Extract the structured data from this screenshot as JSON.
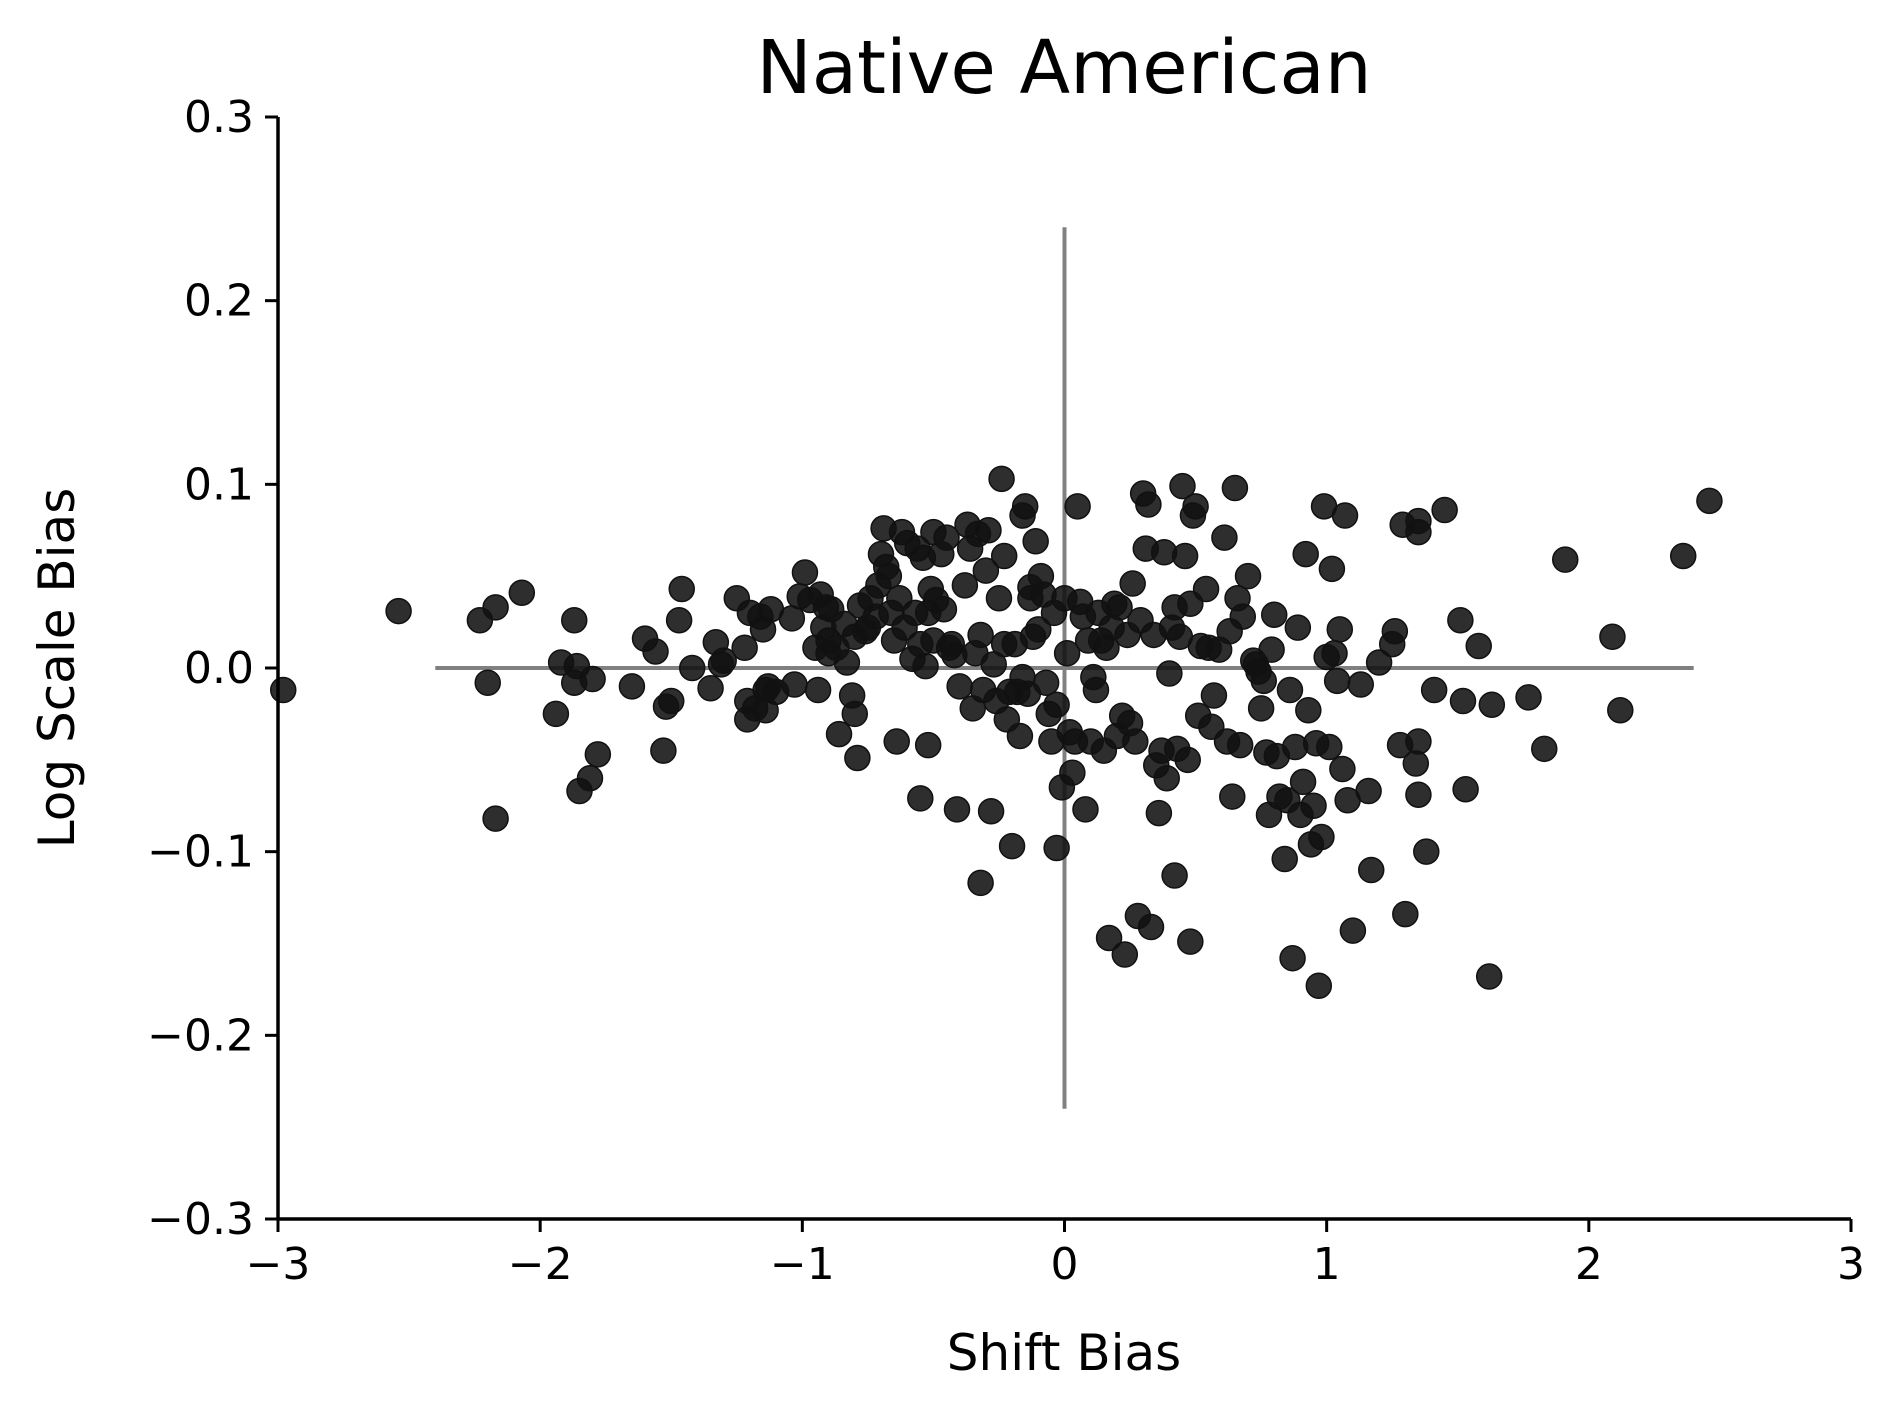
{
  "chart_data": {
    "type": "scatter",
    "title": "Native American",
    "xlabel": "Shift Bias",
    "ylabel": "Log Scale Bias",
    "xlim": [
      -3,
      3
    ],
    "ylim": [
      -0.3,
      0.3
    ],
    "xticks": [
      -3,
      -2,
      -1,
      0,
      1,
      2,
      3
    ],
    "xtick_labels": [
      "−3",
      "−2",
      "−1",
      "0",
      "1",
      "2",
      "3"
    ],
    "yticks": [
      0.3,
      0.2,
      0.1,
      0.0,
      -0.1,
      -0.2,
      -0.3
    ],
    "ytick_labels": [
      "0.3",
      "0.2",
      "0.1",
      "0.0",
      "−0.1",
      "−0.2",
      "−0.3"
    ],
    "reference_lines": {
      "horizontal": {
        "y": 0,
        "x_from": -2.4,
        "x_to": 2.4
      },
      "vertical": {
        "x": 0,
        "y_from": -0.24,
        "y_to": 0.24
      }
    },
    "grid": false,
    "colors": {
      "points": "#111111",
      "reference": "#808080",
      "axes": "#000000"
    },
    "series": [
      {
        "points": [
          [
            -2.98,
            -0.012
          ],
          [
            -2.54,
            0.031
          ],
          [
            -2.23,
            0.026
          ],
          [
            -2.2,
            -0.008
          ],
          [
            -2.17,
            0.033
          ],
          [
            -2.07,
            0.041
          ],
          [
            -2.17,
            -0.082
          ],
          [
            -1.94,
            -0.025
          ],
          [
            -1.92,
            0.003
          ],
          [
            -1.87,
            0.026
          ],
          [
            -1.86,
            0.001
          ],
          [
            -1.87,
            -0.008
          ],
          [
            -1.85,
            -0.067
          ],
          [
            -1.81,
            -0.06
          ],
          [
            -1.8,
            -0.006
          ],
          [
            -1.78,
            -0.047
          ],
          [
            -1.65,
            -0.01
          ],
          [
            -1.6,
            0.016
          ],
          [
            -1.56,
            0.009
          ],
          [
            -1.53,
            -0.045
          ],
          [
            -1.52,
            -0.021
          ],
          [
            -1.5,
            -0.018
          ],
          [
            -1.47,
            0.026
          ],
          [
            -1.46,
            0.043
          ],
          [
            -1.42,
            0.0
          ],
          [
            -1.35,
            -0.011
          ],
          [
            -1.33,
            0.014
          ],
          [
            -1.31,
            0.002
          ],
          [
            -1.3,
            0.004
          ],
          [
            -1.25,
            0.038
          ],
          [
            -1.22,
            0.011
          ],
          [
            -1.21,
            -0.018
          ],
          [
            -1.21,
            -0.028
          ],
          [
            -1.2,
            0.03
          ],
          [
            -1.18,
            -0.022
          ],
          [
            -1.16,
            0.028
          ],
          [
            -1.15,
            0.021
          ],
          [
            -1.14,
            -0.012
          ],
          [
            -1.14,
            -0.023
          ],
          [
            -1.13,
            -0.01
          ],
          [
            -1.12,
            0.032
          ],
          [
            -1.1,
            -0.013
          ],
          [
            -1.04,
            0.027
          ],
          [
            -1.03,
            -0.009
          ],
          [
            -1.01,
            0.039
          ],
          [
            -0.99,
            0.052
          ],
          [
            -0.97,
            0.037
          ],
          [
            -0.95,
            0.011
          ],
          [
            -0.94,
            -0.012
          ],
          [
            -0.93,
            0.04
          ],
          [
            -0.92,
            0.022
          ],
          [
            -0.91,
            0.033
          ],
          [
            -0.9,
            0.008
          ],
          [
            -0.9,
            0.015
          ],
          [
            -0.89,
            0.032
          ],
          [
            -0.87,
            0.011
          ],
          [
            -0.86,
            -0.036
          ],
          [
            -0.84,
            0.024
          ],
          [
            -0.83,
            0.003
          ],
          [
            -0.81,
            -0.015
          ],
          [
            -0.8,
            -0.025
          ],
          [
            -0.8,
            0.017
          ],
          [
            -0.79,
            -0.049
          ],
          [
            -0.78,
            0.034
          ],
          [
            -0.76,
            0.02
          ],
          [
            -0.75,
            0.022
          ],
          [
            -0.74,
            0.038
          ],
          [
            -0.72,
            0.028
          ],
          [
            -0.71,
            0.045
          ],
          [
            -0.7,
            0.062
          ],
          [
            -0.69,
            0.076
          ],
          [
            -0.68,
            0.055
          ],
          [
            -0.67,
            0.05
          ],
          [
            -0.66,
            0.03
          ],
          [
            -0.65,
            0.015
          ],
          [
            -0.64,
            -0.04
          ],
          [
            -0.63,
            0.038
          ],
          [
            -0.62,
            0.074
          ],
          [
            -0.61,
            0.022
          ],
          [
            -0.6,
            0.068
          ],
          [
            -0.58,
            0.005
          ],
          [
            -0.57,
            0.03
          ],
          [
            -0.56,
            0.065
          ],
          [
            -0.55,
            0.013
          ],
          [
            -0.55,
            -0.071
          ],
          [
            -0.54,
            0.06
          ],
          [
            -0.53,
            0.001
          ],
          [
            -0.52,
            0.03
          ],
          [
            -0.52,
            -0.042
          ],
          [
            -0.51,
            0.043
          ],
          [
            -0.5,
            0.074
          ],
          [
            -0.5,
            0.015
          ],
          [
            -0.49,
            0.037
          ],
          [
            -0.47,
            0.062
          ],
          [
            -0.46,
            0.032
          ],
          [
            -0.45,
            0.071
          ],
          [
            -0.44,
            0.011
          ],
          [
            -0.43,
            0.013
          ],
          [
            -0.42,
            0.007
          ],
          [
            -0.41,
            -0.077
          ],
          [
            -0.4,
            -0.01
          ],
          [
            -0.38,
            0.045
          ],
          [
            -0.37,
            0.078
          ],
          [
            -0.36,
            0.065
          ],
          [
            -0.35,
            -0.022
          ],
          [
            -0.34,
            0.008
          ],
          [
            -0.33,
            0.073
          ],
          [
            -0.32,
            0.018
          ],
          [
            -0.32,
            -0.117
          ],
          [
            -0.31,
            -0.012
          ],
          [
            -0.3,
            0.053
          ],
          [
            -0.29,
            0.075
          ],
          [
            -0.28,
            -0.078
          ],
          [
            -0.27,
            0.002
          ],
          [
            -0.26,
            -0.018
          ],
          [
            -0.25,
            0.038
          ],
          [
            -0.24,
            0.103
          ],
          [
            -0.23,
            0.061
          ],
          [
            -0.23,
            0.013
          ],
          [
            -0.22,
            -0.028
          ],
          [
            -0.21,
            -0.013
          ],
          [
            -0.2,
            -0.097
          ],
          [
            -0.19,
            0.013
          ],
          [
            -0.18,
            -0.013
          ],
          [
            -0.17,
            -0.037
          ],
          [
            -0.16,
            -0.005
          ],
          [
            -0.16,
            0.083
          ],
          [
            -0.15,
            0.088
          ],
          [
            -0.14,
            -0.014
          ],
          [
            -0.13,
            0.044
          ],
          [
            -0.13,
            0.038
          ],
          [
            -0.12,
            0.017
          ],
          [
            -0.11,
            0.069
          ],
          [
            -0.1,
            0.021
          ],
          [
            -0.09,
            0.05
          ],
          [
            -0.08,
            0.04
          ],
          [
            -0.07,
            -0.008
          ],
          [
            -0.06,
            -0.025
          ],
          [
            -0.05,
            -0.04
          ],
          [
            -0.04,
            0.03
          ],
          [
            -0.03,
            -0.02
          ],
          [
            -0.03,
            -0.098
          ],
          [
            -0.01,
            -0.065
          ],
          [
            0.0,
            0.038
          ],
          [
            0.01,
            0.008
          ],
          [
            0.02,
            -0.035
          ],
          [
            0.03,
            -0.057
          ],
          [
            0.04,
            -0.04
          ],
          [
            0.05,
            0.088
          ],
          [
            0.06,
            0.036
          ],
          [
            0.07,
            0.028
          ],
          [
            0.08,
            -0.077
          ],
          [
            0.09,
            0.015
          ],
          [
            0.1,
            -0.04
          ],
          [
            0.11,
            -0.005
          ],
          [
            0.12,
            -0.012
          ],
          [
            0.13,
            0.03
          ],
          [
            0.14,
            0.015
          ],
          [
            0.15,
            -0.045
          ],
          [
            0.16,
            0.011
          ],
          [
            0.17,
            -0.147
          ],
          [
            0.18,
            0.022
          ],
          [
            0.19,
            0.035
          ],
          [
            0.2,
            -0.037
          ],
          [
            0.21,
            0.033
          ],
          [
            0.22,
            -0.026
          ],
          [
            0.23,
            -0.156
          ],
          [
            0.24,
            0.018
          ],
          [
            0.25,
            -0.03
          ],
          [
            0.26,
            0.046
          ],
          [
            0.27,
            -0.04
          ],
          [
            0.28,
            -0.135
          ],
          [
            0.29,
            0.026
          ],
          [
            0.3,
            0.095
          ],
          [
            0.31,
            0.065
          ],
          [
            0.32,
            0.089
          ],
          [
            0.33,
            -0.141
          ],
          [
            0.34,
            0.018
          ],
          [
            0.35,
            -0.053
          ],
          [
            0.36,
            -0.079
          ],
          [
            0.37,
            -0.045
          ],
          [
            0.38,
            0.063
          ],
          [
            0.39,
            -0.06
          ],
          [
            0.4,
            -0.003
          ],
          [
            0.41,
            0.022
          ],
          [
            0.42,
            0.033
          ],
          [
            0.42,
            -0.113
          ],
          [
            0.43,
            -0.044
          ],
          [
            0.44,
            0.017
          ],
          [
            0.45,
            0.099
          ],
          [
            0.46,
            0.061
          ],
          [
            0.47,
            -0.05
          ],
          [
            0.48,
            0.035
          ],
          [
            0.48,
            -0.149
          ],
          [
            0.49,
            0.083
          ],
          [
            0.5,
            0.088
          ],
          [
            0.51,
            -0.026
          ],
          [
            0.52,
            0.012
          ],
          [
            0.54,
            0.043
          ],
          [
            0.55,
            0.011
          ],
          [
            0.56,
            -0.032
          ],
          [
            0.57,
            -0.015
          ],
          [
            0.59,
            0.01
          ],
          [
            0.61,
            0.071
          ],
          [
            0.62,
            -0.04
          ],
          [
            0.63,
            0.02
          ],
          [
            0.64,
            -0.07
          ],
          [
            0.65,
            0.098
          ],
          [
            0.66,
            0.038
          ],
          [
            0.67,
            -0.042
          ],
          [
            0.68,
            0.028
          ],
          [
            0.7,
            0.05
          ],
          [
            0.72,
            0.004
          ],
          [
            0.73,
            0.002
          ],
          [
            0.74,
            -0.002
          ],
          [
            0.75,
            -0.022
          ],
          [
            0.76,
            -0.007
          ],
          [
            0.77,
            -0.046
          ],
          [
            0.78,
            -0.08
          ],
          [
            0.79,
            0.01
          ],
          [
            0.8,
            0.029
          ],
          [
            0.81,
            -0.048
          ],
          [
            0.82,
            -0.07
          ],
          [
            0.84,
            -0.104
          ],
          [
            0.85,
            -0.072
          ],
          [
            0.86,
            -0.012
          ],
          [
            0.87,
            -0.158
          ],
          [
            0.88,
            -0.043
          ],
          [
            0.89,
            0.022
          ],
          [
            0.9,
            -0.08
          ],
          [
            0.91,
            -0.062
          ],
          [
            0.92,
            0.062
          ],
          [
            0.93,
            -0.023
          ],
          [
            0.94,
            -0.096
          ],
          [
            0.95,
            -0.075
          ],
          [
            0.96,
            -0.041
          ],
          [
            0.97,
            -0.173
          ],
          [
            0.98,
            -0.092
          ],
          [
            0.99,
            0.088
          ],
          [
            1.0,
            0.006
          ],
          [
            1.01,
            -0.043
          ],
          [
            1.02,
            0.054
          ],
          [
            1.03,
            0.008
          ],
          [
            1.04,
            -0.007
          ],
          [
            1.05,
            0.021
          ],
          [
            1.06,
            -0.055
          ],
          [
            1.07,
            0.083
          ],
          [
            1.08,
            -0.072
          ],
          [
            1.1,
            -0.143
          ],
          [
            1.13,
            -0.009
          ],
          [
            1.16,
            -0.067
          ],
          [
            1.17,
            -0.11
          ],
          [
            1.2,
            0.003
          ],
          [
            1.25,
            0.013
          ],
          [
            1.26,
            0.02
          ],
          [
            1.28,
            -0.042
          ],
          [
            1.29,
            0.078
          ],
          [
            1.3,
            -0.134
          ],
          [
            1.34,
            -0.052
          ],
          [
            1.35,
            0.074
          ],
          [
            1.35,
            0.08
          ],
          [
            1.35,
            -0.069
          ],
          [
            1.35,
            -0.04
          ],
          [
            1.38,
            -0.1
          ],
          [
            1.41,
            -0.012
          ],
          [
            1.45,
            0.086
          ],
          [
            1.51,
            0.026
          ],
          [
            1.52,
            -0.018
          ],
          [
            1.53,
            -0.066
          ],
          [
            1.58,
            0.012
          ],
          [
            1.62,
            -0.168
          ],
          [
            1.63,
            -0.02
          ],
          [
            1.77,
            -0.016
          ],
          [
            1.83,
            -0.044
          ],
          [
            1.91,
            0.059
          ],
          [
            2.09,
            0.017
          ],
          [
            2.12,
            -0.023
          ],
          [
            2.36,
            0.061
          ],
          [
            2.46,
            0.091
          ]
        ]
      }
    ]
  }
}
